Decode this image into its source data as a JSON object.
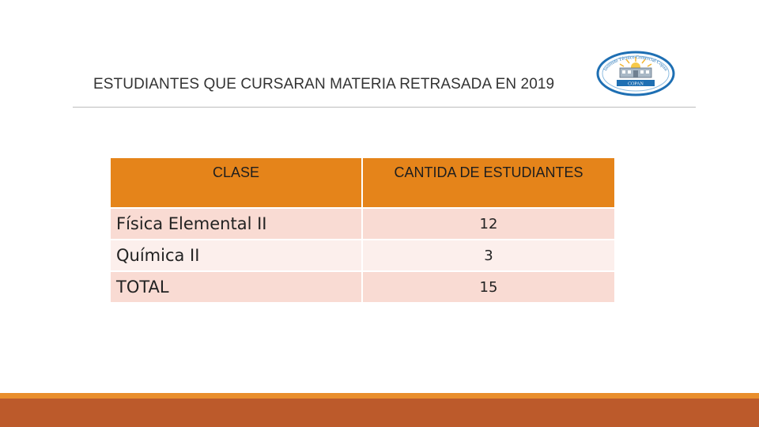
{
  "slide": {
    "title": "ESTUDIANTES QUE CURSARAN MATERIA RETRASADA  EN 2019"
  },
  "table": {
    "headers": [
      "CLASE",
      "CANTIDA DE ESTUDIANTES"
    ],
    "rows": [
      {
        "clase": "Física Elemental II",
        "cantidad": "12"
      },
      {
        "clase": "Química II",
        "cantidad": "3"
      },
      {
        "clase": "TOTAL",
        "cantidad": "15"
      }
    ]
  },
  "logo": {
    "ring_text": "Instituto Técnico Comercial Copan",
    "banner_text": "COPAN"
  },
  "colors": {
    "header": "#e5841a",
    "row_odd": "#f9dbd3",
    "row_even": "#fcefec",
    "accent_bar": "#e98e2c",
    "footer_bar": "#bc5a2b",
    "logo_ring": "#1e6fb3"
  }
}
